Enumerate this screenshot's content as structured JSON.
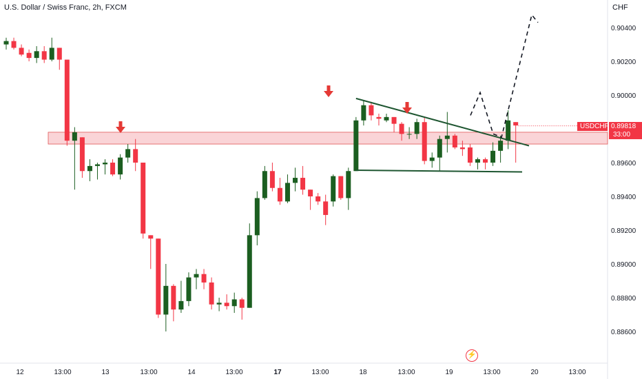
{
  "header": {
    "title": "U.S. Dollar / Swiss Franc, 2h, FXCM",
    "currency": "CHF"
  },
  "price_label": {
    "symbol": "USDCHF",
    "value": "0.89818",
    "countdown": "33:00"
  },
  "logo_icon": "tradingview-logo-icon",
  "colors": {
    "up": "#1b5e20",
    "down": "#f23645",
    "zone": "#f8c6ca",
    "zone_border": "#e05555",
    "arrow": "#e53935",
    "line": "#1e5631"
  },
  "chart_data": {
    "type": "candlestick",
    "y_axis": {
      "min": 0.885,
      "max": 0.9055,
      "ticks": [
        "0.90400",
        "0.90200",
        "0.90000",
        "0.89800",
        "0.89600",
        "0.89400",
        "0.89200",
        "0.89000",
        "0.88800",
        "0.88600"
      ]
    },
    "x_axis": {
      "ticks": [
        "12",
        "13:00",
        "13",
        "13:00",
        "14",
        "13:00",
        "17",
        "13:00",
        "18",
        "13:00",
        "19",
        "13:00",
        "20",
        "13:00"
      ]
    },
    "resistance_zone": {
      "from": 0.8971,
      "to": 0.8978
    },
    "candles": [
      [
        0.903,
        0.9034,
        0.9027,
        0.9032
      ],
      [
        0.9032,
        0.9034,
        0.9027,
        0.9028
      ],
      [
        0.9028,
        0.903,
        0.9023,
        0.9024
      ],
      [
        0.9025,
        0.9027,
        0.902,
        0.9022
      ],
      [
        0.9022,
        0.9029,
        0.9019,
        0.9026
      ],
      [
        0.9026,
        0.9029,
        0.9019,
        0.9021
      ],
      [
        0.9021,
        0.9034,
        0.902,
        0.9028
      ],
      [
        0.9028,
        0.9028,
        0.9015,
        0.9021
      ],
      [
        0.9021,
        0.9021,
        0.897,
        0.8973
      ],
      [
        0.8973,
        0.8981,
        0.8944,
        0.8978
      ],
      [
        0.8975,
        0.8975,
        0.8951,
        0.8955
      ],
      [
        0.8955,
        0.8962,
        0.8949,
        0.8958
      ],
      [
        0.8958,
        0.896,
        0.895,
        0.8959
      ],
      [
        0.8959,
        0.8962,
        0.8953,
        0.896
      ],
      [
        0.896,
        0.8962,
        0.8952,
        0.8953
      ],
      [
        0.8953,
        0.8965,
        0.895,
        0.8963
      ],
      [
        0.8963,
        0.8971,
        0.896,
        0.8968
      ],
      [
        0.8968,
        0.8974,
        0.8955,
        0.896
      ],
      [
        0.896,
        0.896,
        0.8915,
        0.8918
      ],
      [
        0.8917,
        0.8917,
        0.8897,
        0.8915
      ],
      [
        0.8915,
        0.8915,
        0.8868,
        0.887
      ],
      [
        0.887,
        0.89,
        0.886,
        0.8887
      ],
      [
        0.8887,
        0.8888,
        0.8866,
        0.8873
      ],
      [
        0.8873,
        0.889,
        0.8871,
        0.8878
      ],
      [
        0.8878,
        0.8895,
        0.8875,
        0.8892
      ],
      [
        0.8892,
        0.8897,
        0.8885,
        0.8894
      ],
      [
        0.8894,
        0.8897,
        0.8885,
        0.8889
      ],
      [
        0.8889,
        0.8892,
        0.8873,
        0.8876
      ],
      [
        0.8876,
        0.888,
        0.8872,
        0.8877
      ],
      [
        0.8877,
        0.8882,
        0.8873,
        0.8875
      ],
      [
        0.8875,
        0.8883,
        0.8871,
        0.8879
      ],
      [
        0.8879,
        0.888,
        0.8867,
        0.8874
      ],
      [
        0.8874,
        0.8924,
        0.8874,
        0.8917
      ],
      [
        0.8917,
        0.8943,
        0.8911,
        0.8939
      ],
      [
        0.8939,
        0.8958,
        0.8938,
        0.8955
      ],
      [
        0.8955,
        0.896,
        0.8943,
        0.8945
      ],
      [
        0.8945,
        0.8951,
        0.8935,
        0.8937
      ],
      [
        0.8937,
        0.8953,
        0.8936,
        0.8948
      ],
      [
        0.8948,
        0.8957,
        0.8943,
        0.8951
      ],
      [
        0.8951,
        0.8958,
        0.8941,
        0.8944
      ],
      [
        0.8944,
        0.8944,
        0.8932,
        0.894
      ],
      [
        0.894,
        0.8942,
        0.8935,
        0.8937
      ],
      [
        0.8937,
        0.8941,
        0.8923,
        0.8929
      ],
      [
        0.8937,
        0.8953,
        0.8934,
        0.8952
      ],
      [
        0.8952,
        0.8952,
        0.8938,
        0.8939
      ],
      [
        0.8939,
        0.8957,
        0.8932,
        0.8955
      ],
      [
        0.8955,
        0.8987,
        0.8955,
        0.8985
      ],
      [
        0.8985,
        0.8997,
        0.8982,
        0.8994
      ],
      [
        0.8994,
        0.8996,
        0.8985,
        0.8988
      ],
      [
        0.8987,
        0.8989,
        0.8982,
        0.8986
      ],
      [
        0.8985,
        0.8989,
        0.8984,
        0.8987
      ],
      [
        0.8987,
        0.8987,
        0.8978,
        0.8983
      ],
      [
        0.8983,
        0.8984,
        0.8973,
        0.8977
      ],
      [
        0.8977,
        0.8981,
        0.8974,
        0.8977
      ],
      [
        0.8977,
        0.8986,
        0.8974,
        0.8984
      ],
      [
        0.8984,
        0.8987,
        0.8959,
        0.8961
      ],
      [
        0.8961,
        0.8966,
        0.8957,
        0.8963
      ],
      [
        0.8963,
        0.8976,
        0.8955,
        0.8974
      ],
      [
        0.8974,
        0.899,
        0.8966,
        0.8976
      ],
      [
        0.8976,
        0.8977,
        0.8968,
        0.8969
      ],
      [
        0.8969,
        0.8973,
        0.8964,
        0.8968
      ],
      [
        0.8969,
        0.8971,
        0.8958,
        0.896
      ],
      [
        0.896,
        0.8963,
        0.8956,
        0.8962
      ],
      [
        0.8962,
        0.8963,
        0.8956,
        0.896
      ],
      [
        0.896,
        0.8972,
        0.8958,
        0.8967
      ],
      [
        0.8967,
        0.8976,
        0.896,
        0.8973
      ],
      [
        0.8973,
        0.8991,
        0.8968,
        0.8985
      ],
      [
        0.8984,
        0.8984,
        0.896,
        0.8982
      ]
    ]
  }
}
